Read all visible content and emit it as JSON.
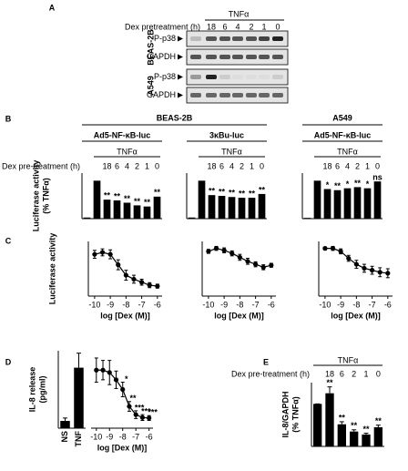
{
  "panel_labels": [
    "A",
    "B",
    "C",
    "D",
    "E"
  ],
  "blot": {
    "pretreatment_label": "Dex pretreatment (h)",
    "stimulus": "TNFα",
    "lanes": [
      "18",
      "6",
      "4",
      "2",
      "1",
      "0"
    ],
    "cell_lines": [
      {
        "name": "BEAS-2B",
        "rows": [
          "P-p38",
          "GAPDH"
        ]
      },
      {
        "name": "A549",
        "rows": [
          "P-p38",
          "GAPDH"
        ]
      }
    ]
  },
  "panel_b_groups": [
    {
      "name": "BEAS-2B"
    },
    {
      "name": "A549"
    }
  ],
  "chart_data": [
    {
      "type": "bar",
      "title": "Ad5-NF-κB-luc",
      "stimulus": "TNFα",
      "x_label": "Dex pre-treatment (h)",
      "y_label": [
        "Luciferase activity",
        "(% TNFα)"
      ],
      "categories": [
        null,
        null,
        "18",
        "6",
        "4",
        "2",
        "1",
        "0"
      ],
      "values": [
        3,
        100,
        50,
        48,
        42,
        35,
        32,
        58
      ],
      "significance": [
        null,
        null,
        "**",
        "**",
        "**",
        "**",
        "**",
        "**"
      ],
      "ylim": [
        0,
        120
      ],
      "color": "#000000"
    },
    {
      "type": "bar",
      "title": "3κBu-luc",
      "stimulus": "TNFα",
      "categories": [
        null,
        null,
        "18",
        "6",
        "4",
        "2",
        "1",
        "0"
      ],
      "values": [
        3,
        100,
        62,
        60,
        57,
        55,
        55,
        65
      ],
      "significance": [
        null,
        null,
        "**",
        "**",
        "**",
        "**",
        "**",
        "**"
      ],
      "ylim": [
        0,
        120
      ],
      "color": "#000000"
    },
    {
      "type": "bar",
      "title": "Ad5-NF-κB-luc",
      "stimulus": "TNFα",
      "categories": [
        null,
        null,
        "18",
        "6",
        "4",
        "2",
        "1",
        "0"
      ],
      "values": [
        2,
        100,
        78,
        75,
        80,
        83,
        80,
        98
      ],
      "significance": [
        null,
        null,
        "*",
        "**",
        "*",
        "**",
        "*",
        "ns"
      ],
      "ylim": [
        0,
        120
      ],
      "color": "#000000"
    },
    {
      "type": "line",
      "y_label": [
        "Luciferase activity"
      ],
      "x_label": "log [Dex (M)]",
      "x": [
        -10,
        -9.5,
        -9,
        -8.5,
        -8,
        -7.5,
        -7,
        -6.5,
        -6
      ],
      "values": [
        84,
        88,
        84,
        63,
        42,
        34,
        28,
        22,
        20
      ],
      "errors": [
        8,
        7,
        9,
        10,
        10,
        8,
        6,
        5,
        4
      ],
      "xlim": [
        -10.4,
        -5.7
      ],
      "xticks": [
        -10,
        -9,
        -8,
        -7,
        -6
      ],
      "ylim": [
        0,
        110
      ],
      "color": "#000000"
    },
    {
      "type": "line",
      "x_label": "log [Dex (M)]",
      "x": [
        -10,
        -9.5,
        -9,
        -8.5,
        -8,
        -7.5,
        -7,
        -6.5,
        -6
      ],
      "values": [
        90,
        96,
        92,
        86,
        78,
        70,
        64,
        58,
        62
      ],
      "errors": [
        4,
        4,
        5,
        5,
        6,
        6,
        5,
        5,
        4
      ],
      "xlim": [
        -10.4,
        -5.7
      ],
      "xticks": [
        -10,
        -9,
        -8,
        -7,
        -6
      ],
      "ylim": [
        0,
        110
      ],
      "color": "#000000"
    },
    {
      "type": "line",
      "x_label": "log [Dex (M)]",
      "x": [
        -10,
        -9.5,
        -9,
        -8.5,
        -8,
        -7.5,
        -7,
        -6.5,
        -6
      ],
      "values": [
        96,
        96,
        90,
        76,
        64,
        56,
        52,
        48,
        46
      ],
      "errors": [
        3,
        4,
        5,
        6,
        8,
        8,
        8,
        9,
        9
      ],
      "xlim": [
        -10.4,
        -5.7
      ],
      "xticks": [
        -10,
        -9,
        -8,
        -7,
        -6
      ],
      "ylim": [
        0,
        110
      ],
      "color": "#000000"
    },
    {
      "type": "bar",
      "y_label": [
        "IL-8 release",
        "(pg/ml)"
      ],
      "categories": [
        "NS",
        "TNF"
      ],
      "values": [
        150,
        1250
      ],
      "errors": [
        60,
        300
      ],
      "ylim": [
        0,
        1600
      ],
      "color": "#000000"
    },
    {
      "type": "line",
      "x_label": "log [Dex (M)]",
      "x": [
        -10,
        -9.5,
        -9,
        -8.5,
        -8,
        -7.5,
        -7,
        -6.5,
        -6
      ],
      "values": [
        1200,
        1200,
        1150,
        1000,
        800,
        450,
        280,
        220,
        210
      ],
      "errors": [
        250,
        200,
        250,
        180,
        150,
        100,
        80,
        60,
        50
      ],
      "significance": [
        null,
        null,
        null,
        null,
        "*",
        "**",
        "***",
        "***",
        "***"
      ],
      "xlim": [
        -10.4,
        -5.7
      ],
      "xticks": [
        -10,
        -9,
        -8,
        -7,
        -6
      ],
      "ylim": [
        0,
        1600
      ],
      "color": "#000000"
    },
    {
      "type": "bar",
      "stimulus": "TNFα",
      "x_label": "Dex pre-treatment (h)",
      "y_label": [
        "IL-8/GAPDH",
        "(% TNFα)"
      ],
      "categories": [
        null,
        "18",
        "6",
        "2",
        "1",
        "0"
      ],
      "values": [
        100,
        125,
        52,
        35,
        28,
        45
      ],
      "errors": [
        0,
        15,
        6,
        4,
        3,
        5
      ],
      "significance": [
        null,
        "**",
        "**",
        "**",
        "**",
        "**"
      ],
      "ylim": [
        0,
        150
      ],
      "color": "#000000"
    }
  ]
}
